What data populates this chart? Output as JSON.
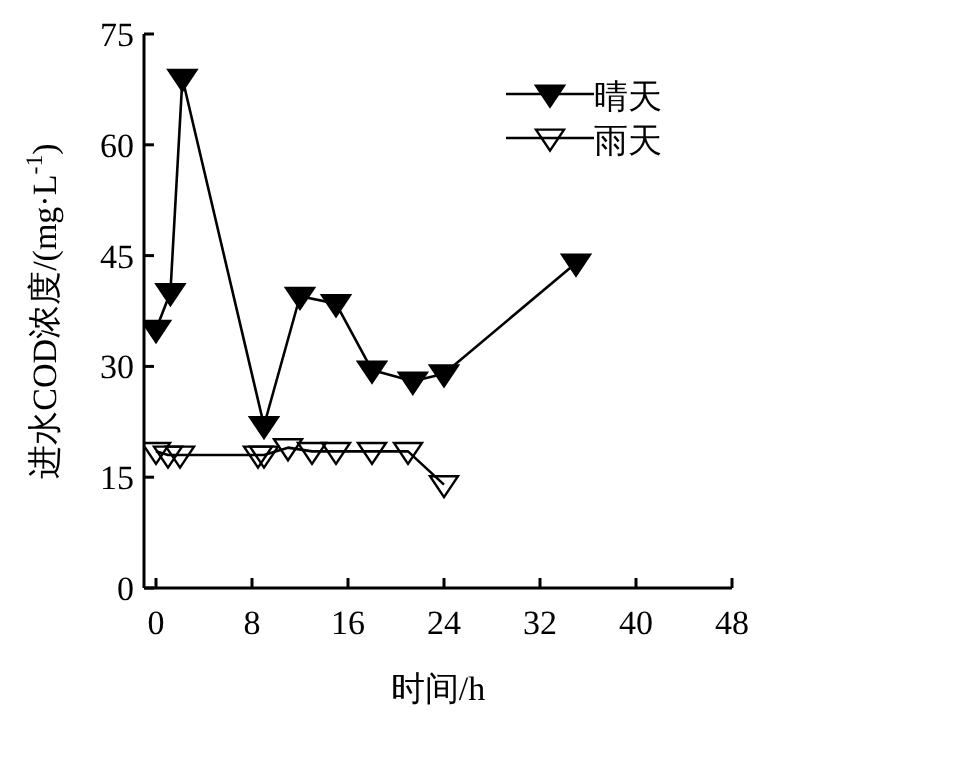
{
  "chart_data": {
    "type": "line",
    "xlabel": "时间/h",
    "ylabel": "进水COD浓度/(mg·L$^{-1}$)",
    "xlim": [
      -1,
      48
    ],
    "xticks": [
      0,
      8,
      16,
      24,
      32,
      40,
      48
    ],
    "ylim": [
      0,
      75
    ],
    "yticks": [
      0,
      15,
      30,
      45,
      60,
      75
    ],
    "grid": false,
    "legend": "top right",
    "marker": "triangle",
    "series": [
      {
        "name": "晴天",
        "color": "#000000",
        "x": [
          0,
          1.2,
          2.2,
          9,
          12,
          15,
          18,
          21.4,
          24,
          35
        ],
        "values": [
          35,
          40,
          69,
          22,
          39.5,
          38.5,
          29.5,
          28,
          29,
          44
        ]
      },
      {
        "name": "雨天",
        "color": "#000000",
        "x": [
          0,
          1,
          2,
          8.5,
          9,
          11,
          13,
          15,
          18,
          21,
          24
        ],
        "values": [
          18.5,
          18,
          18,
          18,
          18,
          19,
          18.5,
          18.5,
          18.5,
          18.5,
          14
        ]
      }
    ]
  }
}
